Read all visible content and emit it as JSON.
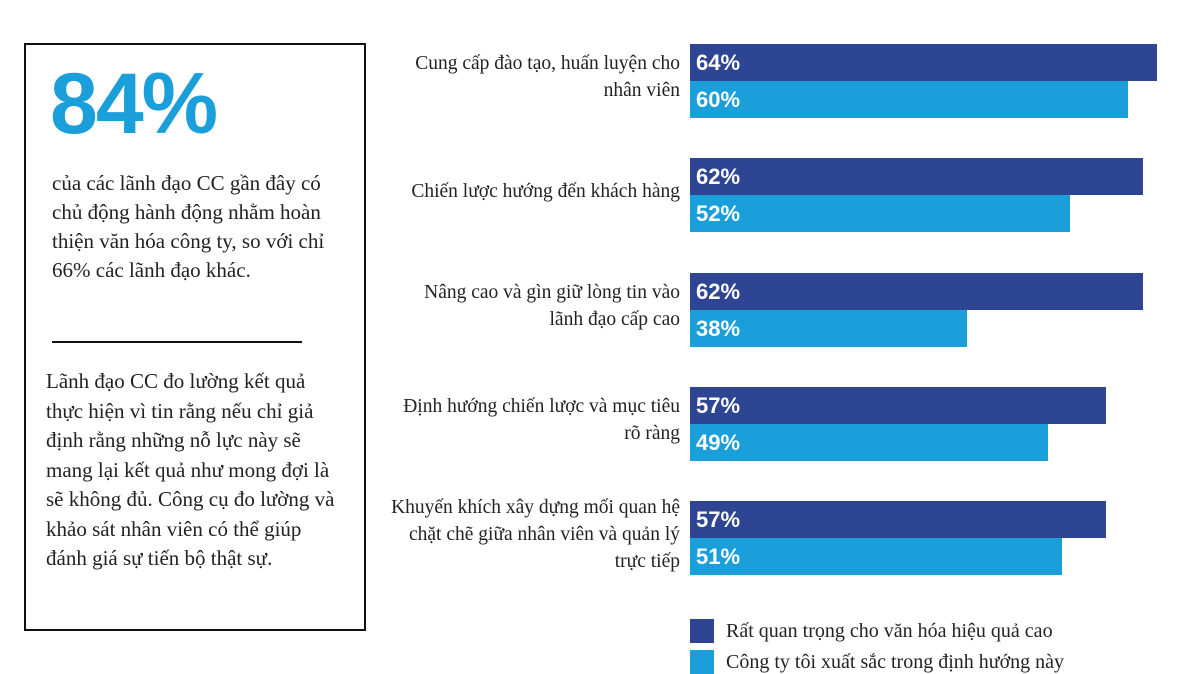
{
  "panel": {
    "stat": "84%",
    "stat_text": "của các lãnh đạo CC gần đây có chủ động hành động nhằm hoàn thiện văn hóa công ty, so với chỉ 66% các lãnh đạo khác.",
    "body": "Lãnh đạo CC đo lường kết quả thực hiện vì tin rằng nếu chỉ giả định rằng những nỗ lực này sẽ mang lại kết quả như mong đợi là sẽ không đủ. Công cụ đo lường và khảo sát nhân viên có thể giúp đánh giá sự tiến bộ thật sự."
  },
  "chart_data": {
    "type": "bar",
    "orientation": "horizontal",
    "categories": [
      "Cung cấp đào tạo, huấn luyện cho nhân viên",
      "Chiến lược hướng đến khách hàng",
      "Nâng cao và gìn giữ lòng tin vào lãnh đạo cấp cao",
      "Định hướng chiến lược và mục tiêu rõ ràng",
      "Khuyến khích xây dựng mối quan hệ chặt chẽ giữa nhân viên và quản lý trực tiếp"
    ],
    "series": [
      {
        "name": "Rất quan trọng cho văn hóa hiệu quả cao",
        "color": "#2e4593",
        "values": [
          64,
          62,
          62,
          57,
          57
        ],
        "value_labels": [
          "64%",
          "62%",
          "62%",
          "57%",
          "57%"
        ]
      },
      {
        "name": "Công ty tôi xuất sắc trong định hướng này",
        "color": "#1a9fdb",
        "values": [
          60,
          52,
          38,
          49,
          51
        ],
        "value_labels": [
          "60%",
          "52%",
          "38%",
          "49%",
          "51%"
        ]
      }
    ]
  }
}
